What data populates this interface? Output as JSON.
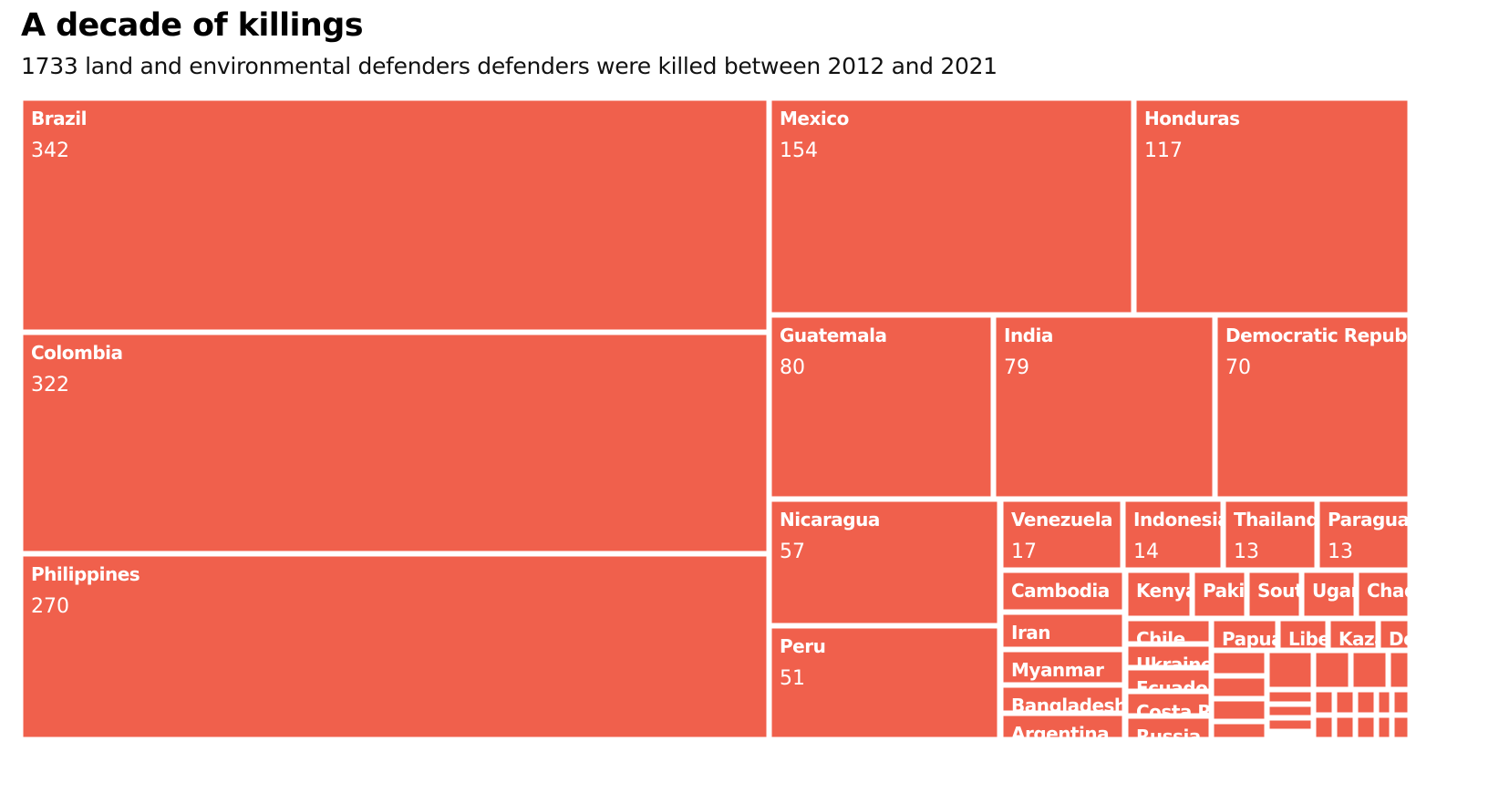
{
  "title": "A decade of killings",
  "subtitle": "1733 land and environmental defenders defenders were killed between 2012 and 2021",
  "colors": {
    "tile": "#f0604c",
    "border": "#ffffff",
    "label": "#ffffff"
  },
  "chart_data": {
    "type": "treemap",
    "title": "A decade of killings",
    "subtitle": "1733 land and environmental defenders defenders were killed between 2012 and 2021",
    "total": 1733,
    "items": [
      {
        "label": "Brazil",
        "value": 342
      },
      {
        "label": "Colombia",
        "value": 322
      },
      {
        "label": "Philippines",
        "value": 270
      },
      {
        "label": "Mexico",
        "value": 154
      },
      {
        "label": "Honduras",
        "value": 117
      },
      {
        "label": "Guatemala",
        "value": 80
      },
      {
        "label": "India",
        "value": 79
      },
      {
        "label": "Democratic Republi",
        "value": 70
      },
      {
        "label": "Nicaragua",
        "value": 57
      },
      {
        "label": "Peru",
        "value": 51
      },
      {
        "label": "Venezuela",
        "value": 17
      },
      {
        "label": "Indonesia",
        "value": 14
      },
      {
        "label": "Thailand",
        "value": 13
      },
      {
        "label": "Paraguay",
        "value": 13
      },
      {
        "label": "Cambodia",
        "value": null
      },
      {
        "label": "Iran",
        "value": null
      },
      {
        "label": "Myanmar",
        "value": null
      },
      {
        "label": "Bangladesh",
        "value": null
      },
      {
        "label": "Argentina",
        "value": null
      },
      {
        "label": "Kenya",
        "value": null
      },
      {
        "label": "Paki",
        "value": null
      },
      {
        "label": "Sout",
        "value": null
      },
      {
        "label": "Ugar",
        "value": null
      },
      {
        "label": "Chad",
        "value": null
      },
      {
        "label": "Chile",
        "value": null
      },
      {
        "label": "Ukraine",
        "value": null
      },
      {
        "label": "Ecuador",
        "value": null
      },
      {
        "label": "Costa R",
        "value": null
      },
      {
        "label": "Russia",
        "value": null
      },
      {
        "label": "Papua",
        "value": null
      },
      {
        "label": "Libe",
        "value": null
      },
      {
        "label": "Kaza",
        "value": null
      },
      {
        "label": "Do",
        "value": null
      }
    ]
  }
}
